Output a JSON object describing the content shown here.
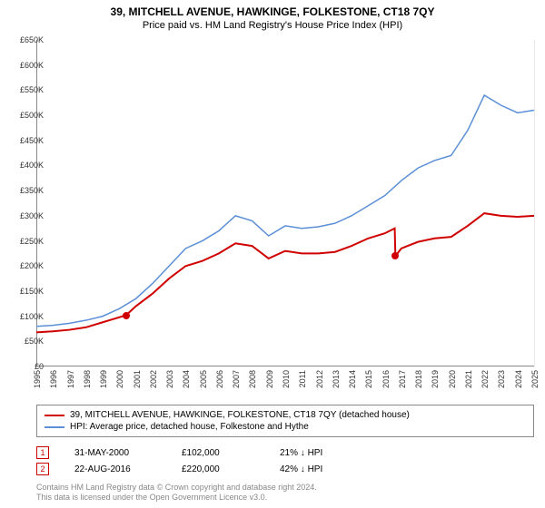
{
  "title": "39, MITCHELL AVENUE, HAWKINGE, FOLKESTONE, CT18 7QY",
  "subtitle": "Price paid vs. HM Land Registry's House Price Index (HPI)",
  "chart": {
    "type": "line",
    "background_color": "#ffffff",
    "grid_color": "#e8e8e8",
    "axis_color": "#888888",
    "label_fontsize": 9,
    "title_fontsize": 12,
    "ylim": [
      0,
      650000
    ],
    "ytick_step": 50000,
    "yticks": [
      "£0",
      "£50K",
      "£100K",
      "£150K",
      "£200K",
      "£250K",
      "£300K",
      "£350K",
      "£400K",
      "£450K",
      "£500K",
      "£550K",
      "£600K",
      "£650K"
    ],
    "xlim": [
      1995,
      2025
    ],
    "xticks": [
      1995,
      1996,
      1997,
      1998,
      1999,
      2000,
      2001,
      2002,
      2003,
      2004,
      2005,
      2006,
      2007,
      2008,
      2009,
      2010,
      2011,
      2012,
      2013,
      2014,
      2015,
      2016,
      2017,
      2018,
      2019,
      2020,
      2021,
      2022,
      2023,
      2024,
      2025
    ],
    "shade": {
      "from": 2000.41,
      "to": 2016.64,
      "color": "#eaf2fa"
    },
    "markers": [
      {
        "idx": "1",
        "x": 2000.41
      },
      {
        "idx": "2",
        "x": 2016.64
      }
    ],
    "marker_color": "#d00000",
    "series": [
      {
        "name": "property",
        "label": "39, MITCHELL AVENUE, HAWKINGE, FOLKESTONE, CT18 7QY (detached house)",
        "color": "#d00000",
        "width": 2,
        "points": [
          [
            1995,
            68000
          ],
          [
            1996,
            70000
          ],
          [
            1997,
            73000
          ],
          [
            1998,
            78000
          ],
          [
            1999,
            88000
          ],
          [
            2000.41,
            102000
          ],
          [
            2001,
            120000
          ],
          [
            2002,
            145000
          ],
          [
            2003,
            175000
          ],
          [
            2004,
            200000
          ],
          [
            2005,
            210000
          ],
          [
            2006,
            225000
          ],
          [
            2007,
            245000
          ],
          [
            2008,
            240000
          ],
          [
            2009,
            215000
          ],
          [
            2010,
            230000
          ],
          [
            2011,
            225000
          ],
          [
            2012,
            225000
          ],
          [
            2013,
            228000
          ],
          [
            2014,
            240000
          ],
          [
            2015,
            255000
          ],
          [
            2016,
            265000
          ],
          [
            2016.6,
            275000
          ],
          [
            2016.64,
            220000
          ],
          [
            2017,
            235000
          ],
          [
            2018,
            248000
          ],
          [
            2019,
            255000
          ],
          [
            2020,
            258000
          ],
          [
            2021,
            280000
          ],
          [
            2022,
            305000
          ],
          [
            2023,
            300000
          ],
          [
            2024,
            298000
          ],
          [
            2025,
            300000
          ]
        ],
        "dots": [
          {
            "x": 2000.41,
            "y": 102000
          },
          {
            "x": 2016.64,
            "y": 220000
          }
        ]
      },
      {
        "name": "hpi",
        "label": "HPI: Average price, detached house, Folkestone and Hythe",
        "color": "#5b8fd6",
        "width": 1.5,
        "points": [
          [
            1995,
            80000
          ],
          [
            1996,
            82000
          ],
          [
            1997,
            86000
          ],
          [
            1998,
            92000
          ],
          [
            1999,
            100000
          ],
          [
            2000,
            115000
          ],
          [
            2001,
            135000
          ],
          [
            2002,
            165000
          ],
          [
            2003,
            200000
          ],
          [
            2004,
            235000
          ],
          [
            2005,
            250000
          ],
          [
            2006,
            270000
          ],
          [
            2007,
            300000
          ],
          [
            2008,
            290000
          ],
          [
            2009,
            260000
          ],
          [
            2010,
            280000
          ],
          [
            2011,
            275000
          ],
          [
            2012,
            278000
          ],
          [
            2013,
            285000
          ],
          [
            2014,
            300000
          ],
          [
            2015,
            320000
          ],
          [
            2016,
            340000
          ],
          [
            2017,
            370000
          ],
          [
            2018,
            395000
          ],
          [
            2019,
            410000
          ],
          [
            2020,
            420000
          ],
          [
            2021,
            470000
          ],
          [
            2022,
            540000
          ],
          [
            2023,
            520000
          ],
          [
            2024,
            505000
          ],
          [
            2025,
            510000
          ]
        ]
      }
    ]
  },
  "legend": {
    "border_color": "#888888",
    "fontsize": 10
  },
  "transactions": [
    {
      "idx": "1",
      "date": "31-MAY-2000",
      "price": "£102,000",
      "delta": "21% ↓ HPI"
    },
    {
      "idx": "2",
      "date": "22-AUG-2016",
      "price": "£220,000",
      "delta": "42% ↓ HPI"
    }
  ],
  "footer": {
    "line1": "Contains HM Land Registry data © Crown copyright and database right 2024.",
    "line2": "This data is licensed under the Open Government Licence v3.0."
  }
}
